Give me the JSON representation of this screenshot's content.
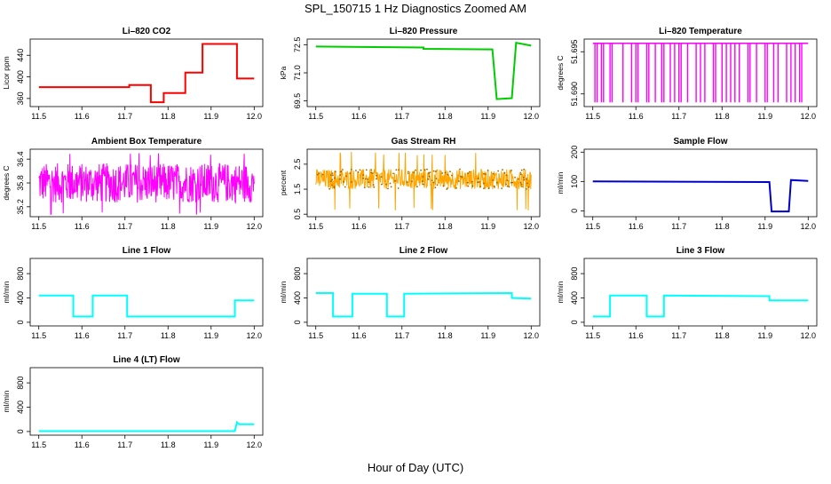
{
  "figure": {
    "title": "SPL_150715 1 Hz Diagnostics Zoomed AM",
    "xlabel": "Hour of Day (UTC)"
  },
  "colors": {
    "co2": "#ff0000",
    "pressure": "#00cc00",
    "temperature": "#ff00ff",
    "rh": "#ffa500",
    "rh_points": "#996600",
    "sample_flow": "#0000cc",
    "line_flow": "#00ffff"
  },
  "chart_data": [
    {
      "type": "line",
      "id": "co2",
      "title": "Li–820 CO2",
      "xlabel": "",
      "ylabel": "Licor ppm",
      "xlim": [
        11.48,
        12.02
      ],
      "ylim": [
        345,
        470
      ],
      "xticks": [
        "11.5",
        "11.6",
        "11.7",
        "11.8",
        "11.9",
        "12.0"
      ],
      "yticks": [
        "360",
        "400",
        "440"
      ],
      "ytick_values": [
        360,
        400,
        440
      ],
      "grid": false,
      "color_key": "co2",
      "series": [
        {
          "x": [
            11.5,
            11.71,
            11.71,
            11.76,
            11.76,
            11.79,
            11.79,
            11.84,
            11.84,
            11.88,
            11.88,
            11.96,
            11.96,
            12.0
          ],
          "y": [
            381,
            381,
            385,
            385,
            353,
            353,
            370,
            370,
            408,
            408,
            461,
            461,
            397,
            397
          ]
        }
      ]
    },
    {
      "type": "line",
      "id": "pressure",
      "title": "Li–820 Pressure",
      "xlabel": "",
      "ylabel": "kPa",
      "xlim": [
        11.48,
        12.02
      ],
      "ylim": [
        69.2,
        72.8
      ],
      "xticks": [
        "11.5",
        "11.6",
        "11.7",
        "11.8",
        "11.9",
        "12.0"
      ],
      "yticks": [
        "69.5",
        "71.0",
        "72.5"
      ],
      "ytick_values": [
        69.5,
        71.0,
        72.5
      ],
      "grid": false,
      "color_key": "pressure",
      "series": [
        {
          "x": [
            11.5,
            11.75,
            11.75,
            11.91,
            11.92,
            11.955,
            11.965,
            12.0
          ],
          "y": [
            72.4,
            72.35,
            72.28,
            72.25,
            69.6,
            69.65,
            72.6,
            72.45
          ]
        }
      ]
    },
    {
      "type": "line",
      "id": "licor_temp",
      "title": "Li–820 Temperature",
      "xlabel": "",
      "ylabel": "degrees C",
      "xlim": [
        11.48,
        12.02
      ],
      "ylim": [
        51.6885,
        51.6965
      ],
      "xticks": [
        "11.5",
        "11.6",
        "11.7",
        "11.8",
        "11.9",
        "12.0"
      ],
      "yticks": [
        "51.690",
        "51.695"
      ],
      "ytick_values": [
        51.69,
        51.695
      ],
      "grid": false,
      "color_key": "temperature",
      "series": [
        {
          "high": 51.696,
          "low": 51.689
        }
      ]
    },
    {
      "type": "line",
      "id": "box_temp",
      "title": "Ambient Box Temperature",
      "xlabel": "",
      "ylabel": "degrees C",
      "xlim": [
        11.48,
        12.02
      ],
      "ylim": [
        34.95,
        36.65
      ],
      "xticks": [
        "11.5",
        "11.6",
        "11.7",
        "11.8",
        "11.9",
        "12.0"
      ],
      "yticks": [
        "35.2",
        "35.8",
        "36.4"
      ],
      "ytick_values": [
        35.2,
        35.8,
        36.4
      ],
      "grid": false,
      "color_key": "temperature",
      "series": [
        {
          "band": [
            35.3,
            36.3
          ],
          "extremes": [
            35.0,
            36.55
          ]
        }
      ]
    },
    {
      "type": "scatter",
      "id": "rh",
      "title": "Gas Stream RH",
      "xlabel": "",
      "ylabel": "percent",
      "xlim": [
        11.48,
        12.02
      ],
      "ylim": [
        0.4,
        3.1
      ],
      "xticks": [
        "11.5",
        "11.6",
        "11.7",
        "11.8",
        "11.9",
        "12.0"
      ],
      "yticks": [
        "0.5",
        "1.5",
        "2.5"
      ],
      "ytick_values": [
        0.5,
        1.5,
        2.5
      ],
      "grid": false,
      "color_key": "rh",
      "series": [
        {
          "band": [
            1.5,
            2.3
          ],
          "extremes": [
            0.6,
            3.0
          ]
        }
      ]
    },
    {
      "type": "line",
      "id": "sample_flow",
      "title": "Sample Flow",
      "xlabel": "",
      "ylabel": "ml/min",
      "xlim": [
        11.48,
        12.02
      ],
      "ylim": [
        -20,
        210
      ],
      "xticks": [
        "11.5",
        "11.6",
        "11.7",
        "11.8",
        "11.9",
        "12.0"
      ],
      "yticks": [
        "0",
        "100",
        "200"
      ],
      "ytick_values": [
        0,
        100,
        200
      ],
      "grid": false,
      "color_key": "sample_flow",
      "series": [
        {
          "x": [
            11.5,
            11.91,
            11.915,
            11.955,
            11.96,
            12.0
          ],
          "y": [
            100,
            98,
            -2,
            -2,
            105,
            102
          ]
        }
      ]
    },
    {
      "type": "line",
      "id": "line1",
      "title": "Line 1 Flow",
      "xlabel": "",
      "ylabel": "ml/min",
      "xlim": [
        11.48,
        12.02
      ],
      "ylim": [
        -60,
        1050
      ],
      "xticks": [
        "11.5",
        "11.6",
        "11.7",
        "11.8",
        "11.9",
        "12.0"
      ],
      "yticks": [
        "0",
        "400",
        "800"
      ],
      "ytick_values": [
        0,
        400,
        800
      ],
      "grid": false,
      "color_key": "line_flow",
      "series": [
        {
          "x": [
            11.5,
            11.58,
            11.58,
            11.625,
            11.625,
            11.705,
            11.705,
            11.955,
            11.955,
            12.0
          ],
          "y": [
            440,
            440,
            95,
            95,
            440,
            440,
            95,
            95,
            360,
            360
          ]
        }
      ]
    },
    {
      "type": "line",
      "id": "line2",
      "title": "Line 2 Flow",
      "xlabel": "",
      "ylabel": "ml/min",
      "xlim": [
        11.48,
        12.02
      ],
      "ylim": [
        -60,
        1050
      ],
      "xticks": [
        "11.5",
        "11.6",
        "11.7",
        "11.8",
        "11.9",
        "12.0"
      ],
      "yticks": [
        "0",
        "400",
        "800"
      ],
      "ytick_values": [
        0,
        400,
        800
      ],
      "grid": false,
      "color_key": "line_flow",
      "series": [
        {
          "x": [
            11.5,
            11.54,
            11.54,
            11.585,
            11.585,
            11.665,
            11.665,
            11.705,
            11.705,
            11.955,
            11.955,
            12.0
          ],
          "y": [
            480,
            480,
            95,
            95,
            470,
            470,
            95,
            95,
            470,
            480,
            400,
            390
          ]
        }
      ]
    },
    {
      "type": "line",
      "id": "line3",
      "title": "Line 3 Flow",
      "xlabel": "",
      "ylabel": "ml/min",
      "xlim": [
        11.48,
        12.02
      ],
      "ylim": [
        -60,
        1050
      ],
      "xticks": [
        "11.5",
        "11.6",
        "11.7",
        "11.8",
        "11.9",
        "12.0"
      ],
      "yticks": [
        "0",
        "400",
        "800"
      ],
      "ytick_values": [
        0,
        400,
        800
      ],
      "grid": false,
      "color_key": "line_flow",
      "series": [
        {
          "x": [
            11.5,
            11.54,
            11.54,
            11.625,
            11.625,
            11.665,
            11.665,
            11.91,
            11.91,
            12.0
          ],
          "y": [
            95,
            95,
            440,
            440,
            95,
            95,
            440,
            430,
            360,
            360
          ]
        }
      ]
    },
    {
      "type": "line",
      "id": "line4",
      "title": "Line 4 (LT) Flow",
      "xlabel": "",
      "ylabel": "ml/min",
      "xlim": [
        11.48,
        12.02
      ],
      "ylim": [
        -60,
        1050
      ],
      "xticks": [
        "11.5",
        "11.6",
        "11.7",
        "11.8",
        "11.9",
        "12.0"
      ],
      "yticks": [
        "0",
        "400",
        "800"
      ],
      "ytick_values": [
        0,
        400,
        800
      ],
      "grid": false,
      "color_key": "line_flow",
      "series": [
        {
          "x": [
            11.5,
            11.955,
            11.96,
            11.965,
            12.0
          ],
          "y": [
            5,
            5,
            150,
            120,
            120
          ]
        }
      ]
    }
  ]
}
